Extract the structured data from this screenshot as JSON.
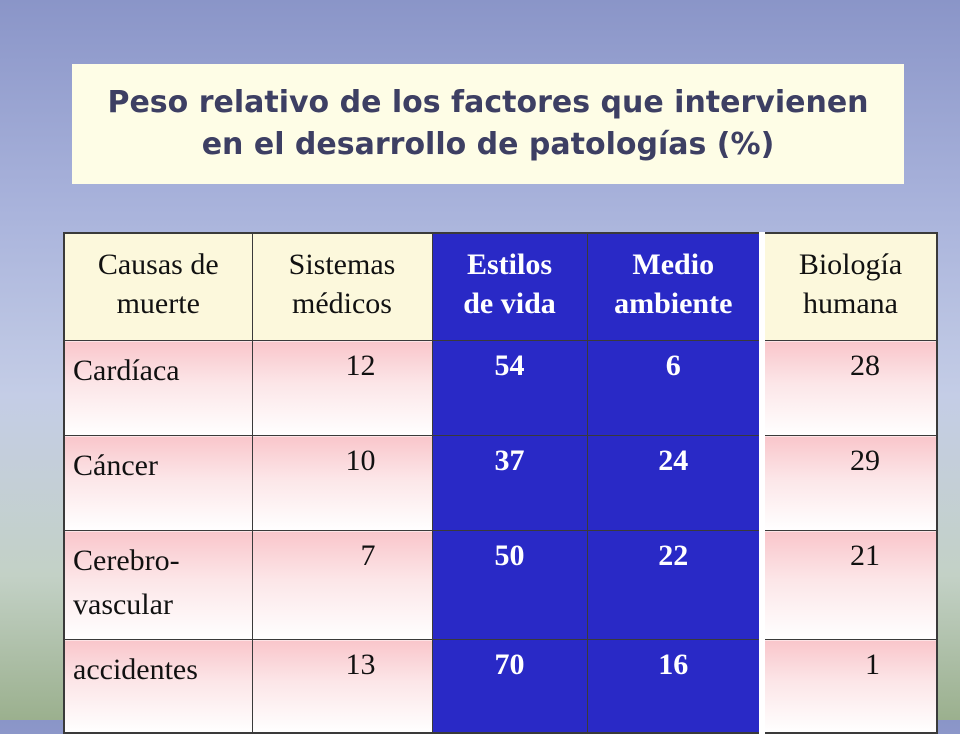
{
  "title": {
    "line1": "Peso relativo de los factores que intervienen",
    "line2": "en el desarrollo de patologías (%)"
  },
  "table": {
    "headers": [
      [
        "Causas de",
        "muerte"
      ],
      [
        "Sistemas",
        "médicos"
      ],
      [
        "Estilos",
        "de vida"
      ],
      [
        "Medio",
        "ambiente"
      ],
      [
        "Biología",
        "humana"
      ]
    ],
    "rows": [
      {
        "cause": [
          "Cardíaca"
        ],
        "values": [
          "12",
          "54",
          "6",
          "28"
        ]
      },
      {
        "cause": [
          "Cáncer"
        ],
        "values": [
          "10",
          "37",
          "24",
          "29"
        ]
      },
      {
        "cause": [
          "Cerebro-",
          "vascular"
        ],
        "values": [
          "7",
          "50",
          "22",
          "21"
        ]
      },
      {
        "cause": [
          "accidentes"
        ],
        "values": [
          "13",
          "70",
          "16",
          "1"
        ]
      }
    ]
  },
  "colors": {
    "highlight": "#2929c6",
    "title_bg": "#fefde6",
    "title_text": "#3d3f63"
  }
}
